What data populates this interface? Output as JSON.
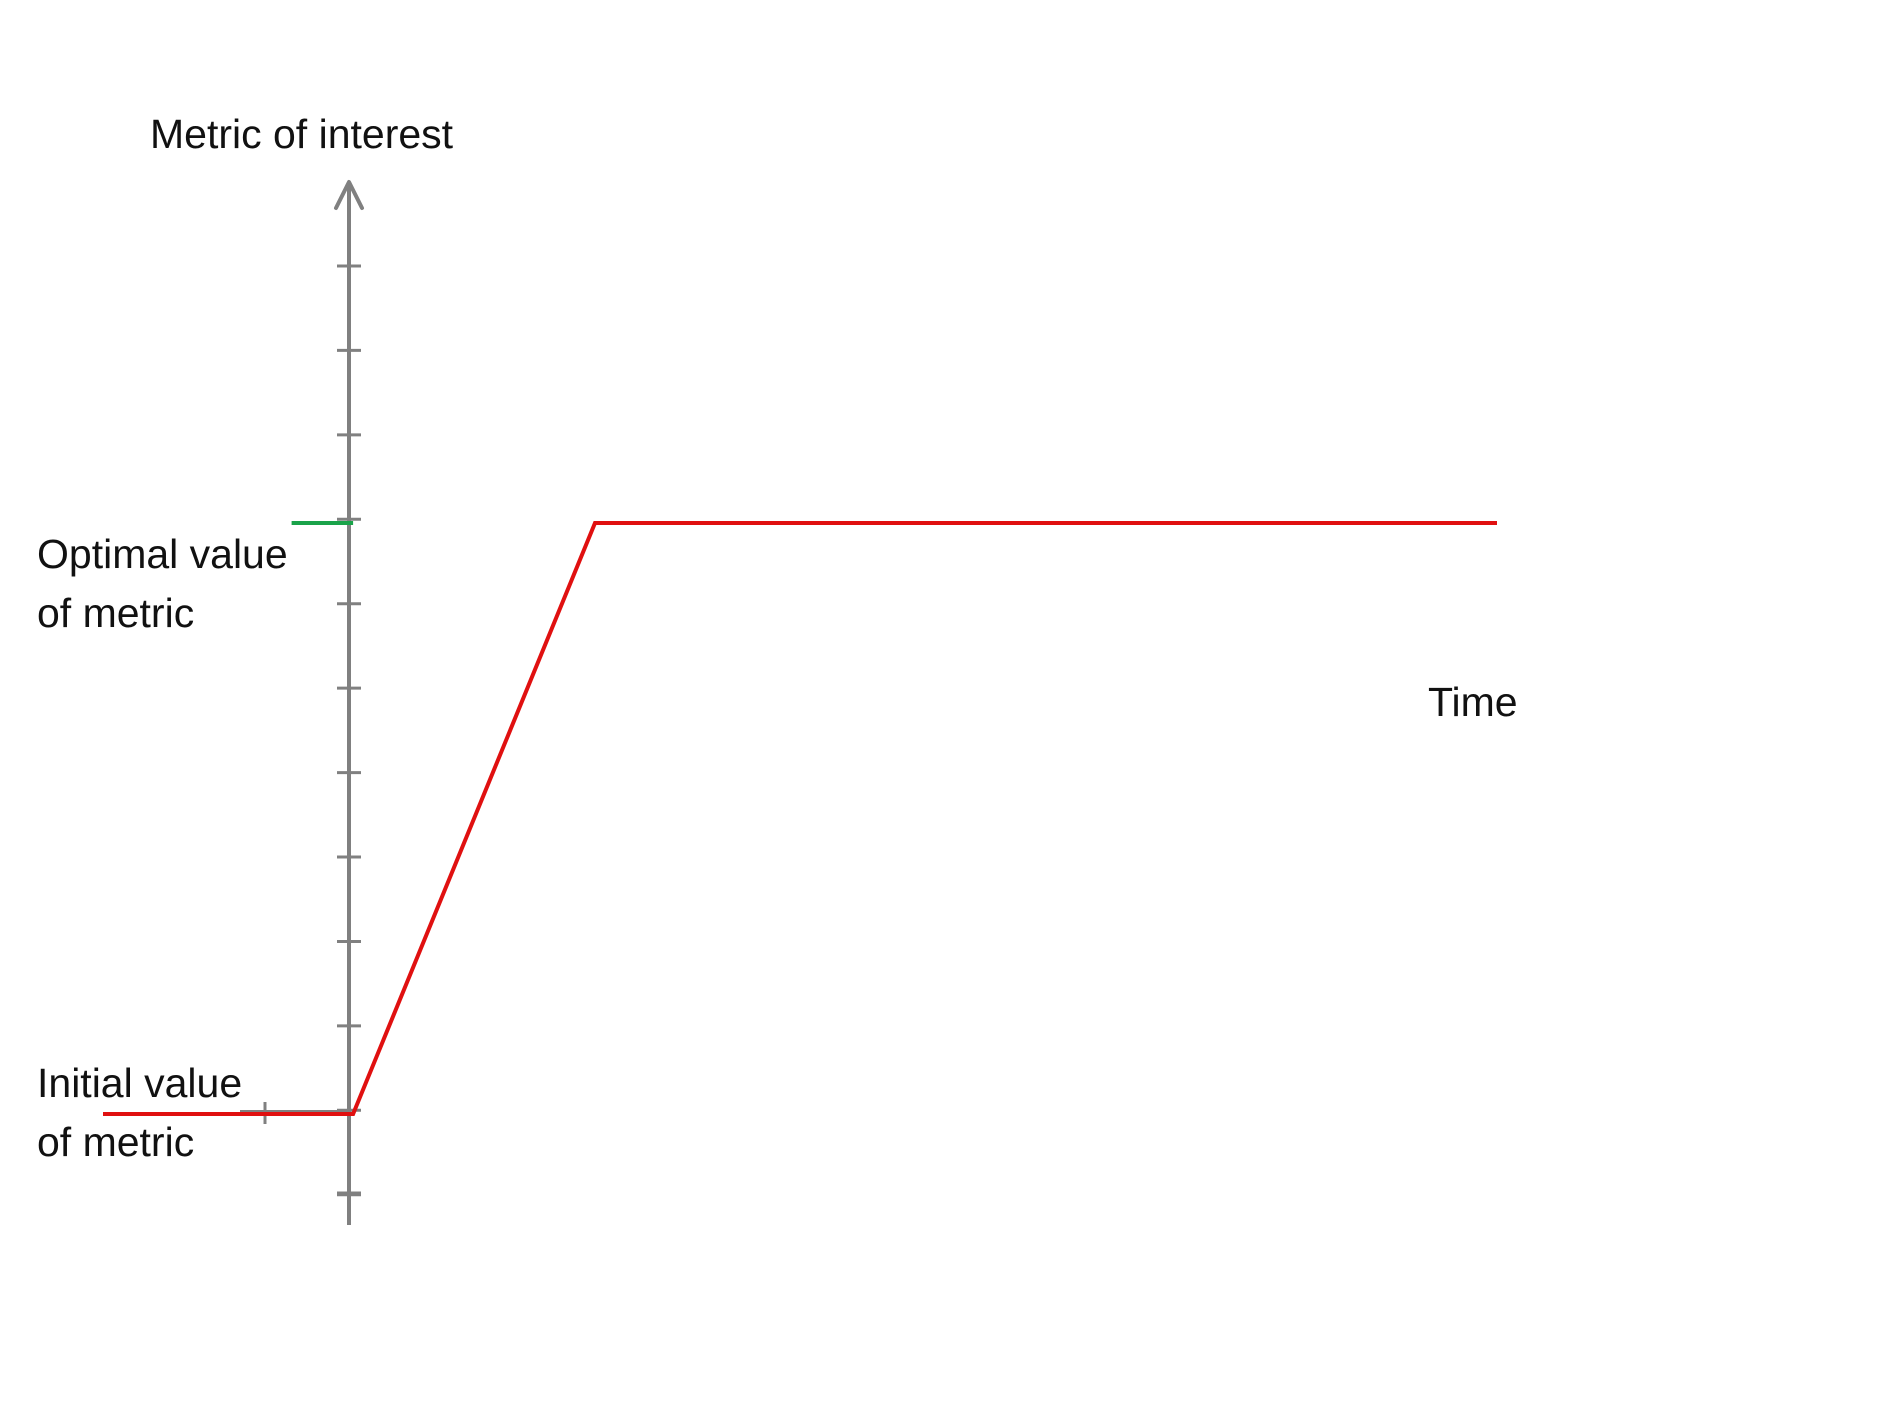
{
  "chart_data": {
    "type": "line",
    "title": "",
    "ylabel": "Metric of interest",
    "xlabel": "Time",
    "grid": false,
    "legend": "none",
    "annotations": {
      "optimal": [
        "Optimal value",
        "of metric"
      ],
      "initial": [
        "Initial value",
        "of metric"
      ]
    },
    "y_ticks_count": 12,
    "xlim": [
      -7,
      34
    ],
    "ylim": [
      -1,
      12
    ],
    "series": [
      {
        "role": "optimal-reference",
        "color": "#1aa34a",
        "x": [
          -1.4,
          0.1
        ],
        "y": [
          7,
          7
        ]
      },
      {
        "role": "metric-trajectory",
        "color": "#e01010",
        "x": [
          -6,
          0.1,
          6,
          28
        ],
        "y": [
          0,
          0,
          7,
          7
        ]
      }
    ]
  }
}
